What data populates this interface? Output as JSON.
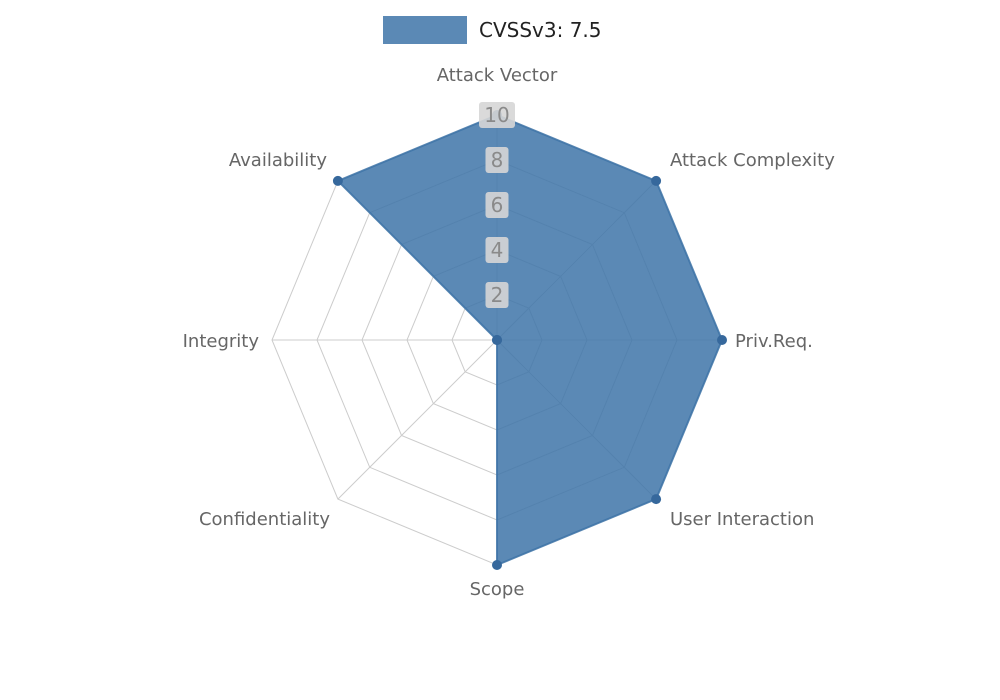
{
  "legend": {
    "label": "CVSSv3: 7.5",
    "swatch_color": "#3e74a8",
    "swatch_opacity": 0.85
  },
  "chart_data": {
    "type": "radar",
    "title": "CVSSv3: 7.5",
    "axes": [
      "Attack Vector",
      "Attack Complexity",
      "Priv.Req.",
      "User Interaction",
      "Scope",
      "Confidentiality",
      "Integrity",
      "Availability"
    ],
    "series": [
      {
        "name": "CVSSv3: 7.5",
        "values": [
          10,
          10,
          10,
          10,
          10,
          0,
          0,
          10
        ],
        "fill_color": "#3e74a8",
        "fill_opacity": 0.85,
        "line_color": "#3e74a8",
        "marker_color": "#36689c"
      }
    ],
    "ticks": [
      2,
      4,
      6,
      8,
      10
    ],
    "rmax": 10,
    "grid": true,
    "grid_color": "#cccccc",
    "tick_bg_color": "#d6d6d6",
    "tick_text_color": "#8a8a8a",
    "axis_label_color": "#666666",
    "legend_position": "top-center"
  }
}
